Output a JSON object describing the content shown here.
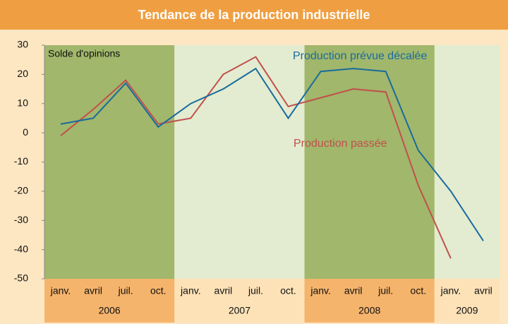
{
  "chart_data": {
    "type": "line",
    "title": "Tendance de la production industrielle",
    "annotations": [
      "Solde d'opinions"
    ],
    "groups": [
      {
        "label": "2006",
        "categories": [
          "janv.",
          "avril",
          "juil.",
          "oct."
        ]
      },
      {
        "label": "2007",
        "categories": [
          "janv.",
          "avril",
          "juil.",
          "oct."
        ]
      },
      {
        "label": "2008",
        "categories": [
          "janv.",
          "avril",
          "juil.",
          "oct."
        ]
      },
      {
        "label": "2009",
        "categories": [
          "janv.",
          "avril"
        ]
      }
    ],
    "series": [
      {
        "name": "Production prévue décalée",
        "color": "#1a6b9e",
        "values": [
          3,
          5,
          17,
          2,
          10,
          15,
          22,
          5,
          21,
          22,
          21,
          -6,
          -20,
          -37
        ]
      },
      {
        "name": "Production passée",
        "color": "#c0504d",
        "values": [
          -1,
          8,
          18,
          3,
          5,
          20,
          26,
          9,
          12,
          15,
          14,
          -18,
          -43,
          null
        ]
      }
    ],
    "ylim": [
      -50,
      30
    ],
    "yticks": [
      -50,
      -40,
      -30,
      -20,
      -10,
      0,
      10,
      20,
      30
    ]
  }
}
